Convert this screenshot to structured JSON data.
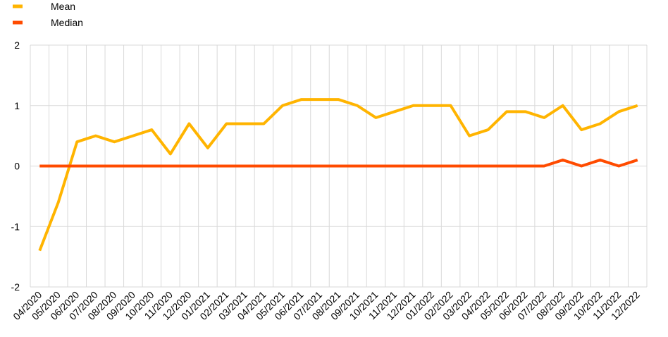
{
  "chart_data": {
    "type": "line",
    "categories": [
      "04/2020",
      "05/2020",
      "06/2020",
      "07/2020",
      "08/2020",
      "09/2020",
      "10/2020",
      "11/2020",
      "12/2020",
      "01/2021",
      "02/2021",
      "03/2021",
      "04/2021",
      "05/2021",
      "06/2021",
      "07/2021",
      "08/2021",
      "09/2021",
      "10/2021",
      "11/2021",
      "12/2021",
      "01/2022",
      "02/2022",
      "03/2022",
      "04/2022",
      "05/2022",
      "06/2022",
      "07/2022",
      "08/2022",
      "09/2022",
      "10/2022",
      "11/2022",
      "12/2022"
    ],
    "series": [
      {
        "name": "Mean",
        "color": "#ffb400",
        "values": [
          -1.4,
          -0.6,
          0.4,
          0.5,
          0.4,
          0.5,
          0.6,
          0.2,
          0.7,
          0.3,
          0.7,
          0.7,
          0.7,
          1.0,
          1.1,
          1.1,
          1.1,
          1.0,
          0.8,
          0.9,
          1.0,
          1.0,
          1.0,
          0.5,
          0.6,
          0.9,
          0.9,
          0.8,
          1.0,
          0.6,
          0.7,
          0.9,
          1.0
        ]
      },
      {
        "name": "Median",
        "color": "#ff4b00",
        "values": [
          0,
          0,
          0,
          0,
          0,
          0,
          0,
          0,
          0,
          0,
          0,
          0,
          0,
          0,
          0,
          0,
          0,
          0,
          0,
          0,
          0,
          0,
          0,
          0,
          0,
          0,
          0,
          0,
          0.1,
          0,
          0.1,
          0,
          0.1
        ]
      }
    ],
    "ylim": [
      -2,
      2
    ],
    "yticks": [
      -2,
      -1,
      0,
      1,
      2
    ],
    "grid": true,
    "legend": "top-left"
  }
}
